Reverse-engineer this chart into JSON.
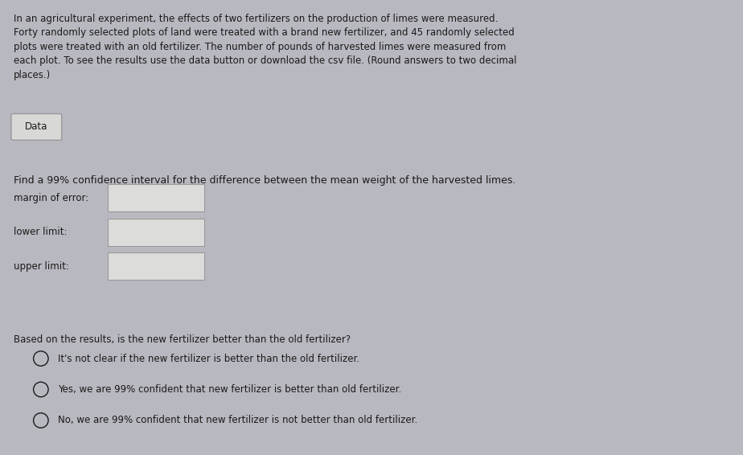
{
  "background_color": "#b8b8c0",
  "content_bg": "#e8e8e6",
  "paragraph": "In an agricultural experiment, the effects of two fertilizers on the production of limes were measured.\nForty randomly selected plots of land were treated with a brand new fertilizer, and 45 randomly selected\nplots were treated with an old fertilizer. The number of pounds of harvested limes were measured from\neach plot. To see the results use the data button or download the csv file. (Round answers to two decimal\nplaces.)",
  "data_button_label": "Data",
  "ci_question": "Find a 99% confidence interval for the difference between the mean weight of the harvested limes.",
  "field_labels": [
    "margin of error:",
    "lower limit:",
    "upper limit:"
  ],
  "result_question": "Based on the results, is the new fertilizer better than the old fertilizer?",
  "options": [
    "It's not clear if the new fertilizer is better than the old fertilizer.",
    "Yes, we are 99% confident that new fertilizer is better than old fertilizer.",
    "No, we are 99% confident that new fertilizer is not better than old fertilizer."
  ],
  "text_color": "#1a1a1a",
  "button_color": "#d8d8d6",
  "button_border": "#999999",
  "input_box_color": "#dcdcda",
  "input_box_border": "#999999",
  "font_size_paragraph": 8.5,
  "font_size_button": 8.5,
  "font_size_ci_question": 9.0,
  "font_size_fields": 8.5,
  "font_size_result": 8.5,
  "font_size_options": 8.5
}
